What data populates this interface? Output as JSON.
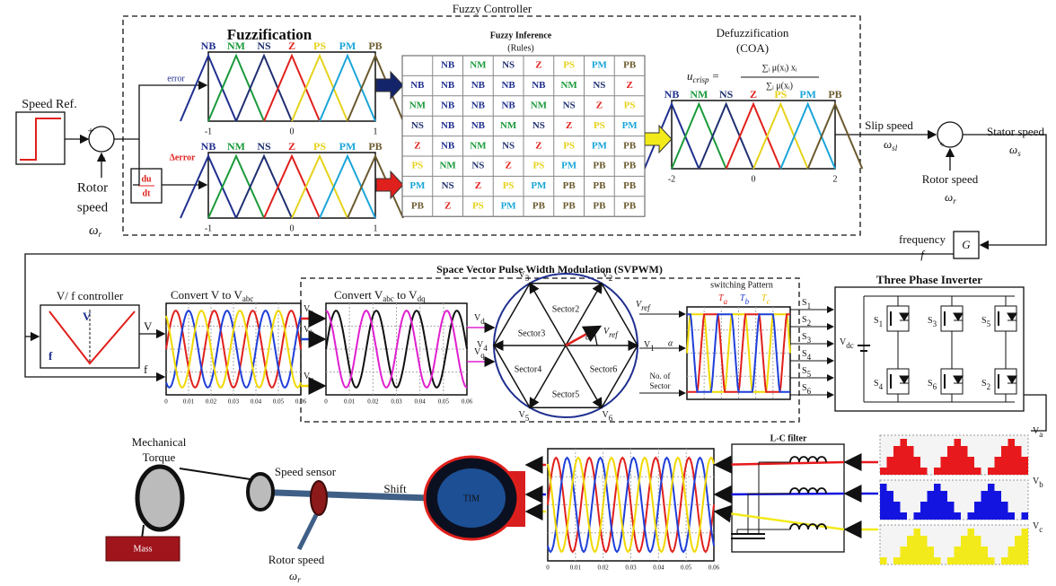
{
  "fuzzy": {
    "title": "Fuzzy Controller",
    "fuzzification": {
      "title": "Fuzzification",
      "error_label": "error",
      "derror_label": "Δerror",
      "ticks": [
        "-1",
        "0",
        "1"
      ]
    },
    "sets": [
      "NB",
      "NM",
      "NS",
      "Z",
      "PS",
      "PM",
      "PB"
    ],
    "inference": {
      "title": "Fuzzy Inference",
      "subtitle": "(Rules)",
      "header": [
        "NB",
        "NM",
        "NS",
        "Z",
        "PS",
        "PM",
        "PB"
      ],
      "rows": [
        [
          "NB",
          "NB",
          "NB",
          "NB",
          "NB",
          "NM",
          "NS",
          "Z"
        ],
        [
          "NM",
          "NB",
          "NB",
          "NB",
          "NM",
          "NS",
          "Z",
          "PS"
        ],
        [
          "NS",
          "NB",
          "NB",
          "NM",
          "NS",
          "Z",
          "PS",
          "PM"
        ],
        [
          "Z",
          "NB",
          "NM",
          "NS",
          "Z",
          "PS",
          "PM",
          "PB"
        ],
        [
          "PS",
          "NM",
          "NS",
          "Z",
          "PS",
          "PM",
          "PB",
          "PB"
        ],
        [
          "PM",
          "NS",
          "Z",
          "PS",
          "PM",
          "PB",
          "PB",
          "PB"
        ],
        [
          "PB",
          "Z",
          "PS",
          "PM",
          "PB",
          "PB",
          "PB",
          "PB"
        ]
      ]
    },
    "defuzzification": {
      "title": "Defuzzification",
      "subtitle": "(COA)",
      "formula": {
        "lhs": "u",
        "lhs_sub": "crisp",
        "eq": "=",
        "num": "∑ᵢ μ(xᵢ) xᵢ",
        "den": "∑ᵢ μ(xᵢ)"
      },
      "ticks": [
        "-2",
        "0",
        "2"
      ]
    }
  },
  "speed_loop": {
    "speed_ref": "Speed Ref.",
    "plus": "+",
    "minus": "-",
    "rotor": "Rotor",
    "speed": "speed",
    "omega_r": {
      "sym": "ω",
      "sub": "r"
    },
    "derivative": {
      "num": "du",
      "den": "dt"
    },
    "slip_speed": "Slip speed",
    "omega_sl": {
      "sym": "ω",
      "sub": "sl"
    },
    "stator_speed": "Stator speed",
    "omega_s": {
      "sym": "ω",
      "sub": "s"
    },
    "rotor_speed": "Rotor speed",
    "frequency": "frequency",
    "f": "f",
    "gain": "G"
  },
  "modulation": {
    "vf": {
      "title": "V/ f controller",
      "v": "V",
      "f": "f"
    },
    "convert_abc": {
      "text": "Convert V to V",
      "sub": "abc"
    },
    "convert_dq": {
      "text": "Convert V",
      "sub": "abc",
      "text2": " to V",
      "sub2": "dq"
    },
    "phases": [
      {
        "sym": "V",
        "sub": "a"
      },
      {
        "sym": "V",
        "sub": "b"
      },
      {
        "sym": "V",
        "sub": "c"
      }
    ],
    "dq": [
      {
        "sym": "V",
        "sub": "d"
      },
      {
        "sym": "V",
        "sub": "q"
      }
    ],
    "plot_ticks": [
      "0",
      "0.01",
      "0.02",
      "0.03",
      "0.04",
      "0.05",
      "0.06"
    ],
    "svpwm": {
      "title": "Space Vector Pulse Width Modulation (SVPWM)",
      "sectors": [
        "Sector2",
        "Sector3",
        "Sector4",
        "Sector5",
        "Sector6"
      ],
      "vectors": [
        {
          "sym": "V",
          "sub": "1"
        },
        {
          "sym": "V",
          "sub": "2"
        },
        {
          "sym": "V",
          "sub": "3"
        },
        {
          "sym": "V",
          "sub": "4"
        },
        {
          "sym": "V",
          "sub": "5"
        },
        {
          "sym": "V",
          "sub": "6"
        }
      ],
      "vref": {
        "sym": "V",
        "sub": "ref"
      },
      "alpha": "α",
      "no_of": "No. of",
      "sector": "Sector"
    },
    "switching": {
      "title": "switching Pattern",
      "times": [
        {
          "sym": "T",
          "sub": "a"
        },
        {
          "sym": "T",
          "sub": "b"
        },
        {
          "sym": "T",
          "sub": "c"
        }
      ]
    },
    "inverter": {
      "title": "Three Phase Inverter",
      "vdc": {
        "sym": "V",
        "sub": "dc"
      },
      "switches": [
        {
          "sym": "S",
          "sub": "1"
        },
        {
          "sym": "S",
          "sub": "2"
        },
        {
          "sym": "S",
          "sub": "3"
        },
        {
          "sym": "S",
          "sub": "4"
        },
        {
          "sym": "S",
          "sub": "5"
        },
        {
          "sym": "S",
          "sub": "6"
        }
      ]
    }
  },
  "drive": {
    "lc_filter": "L-C filter",
    "mechanical": "Mechanical",
    "torque": "Torque",
    "mass": "Mass",
    "speed_sensor": "Speed sensor",
    "rotor_speed": "Rotor speed",
    "omega_r": {
      "sym": "ω",
      "sub": "r"
    },
    "shift": "Shift",
    "motor": "TIM"
  }
}
